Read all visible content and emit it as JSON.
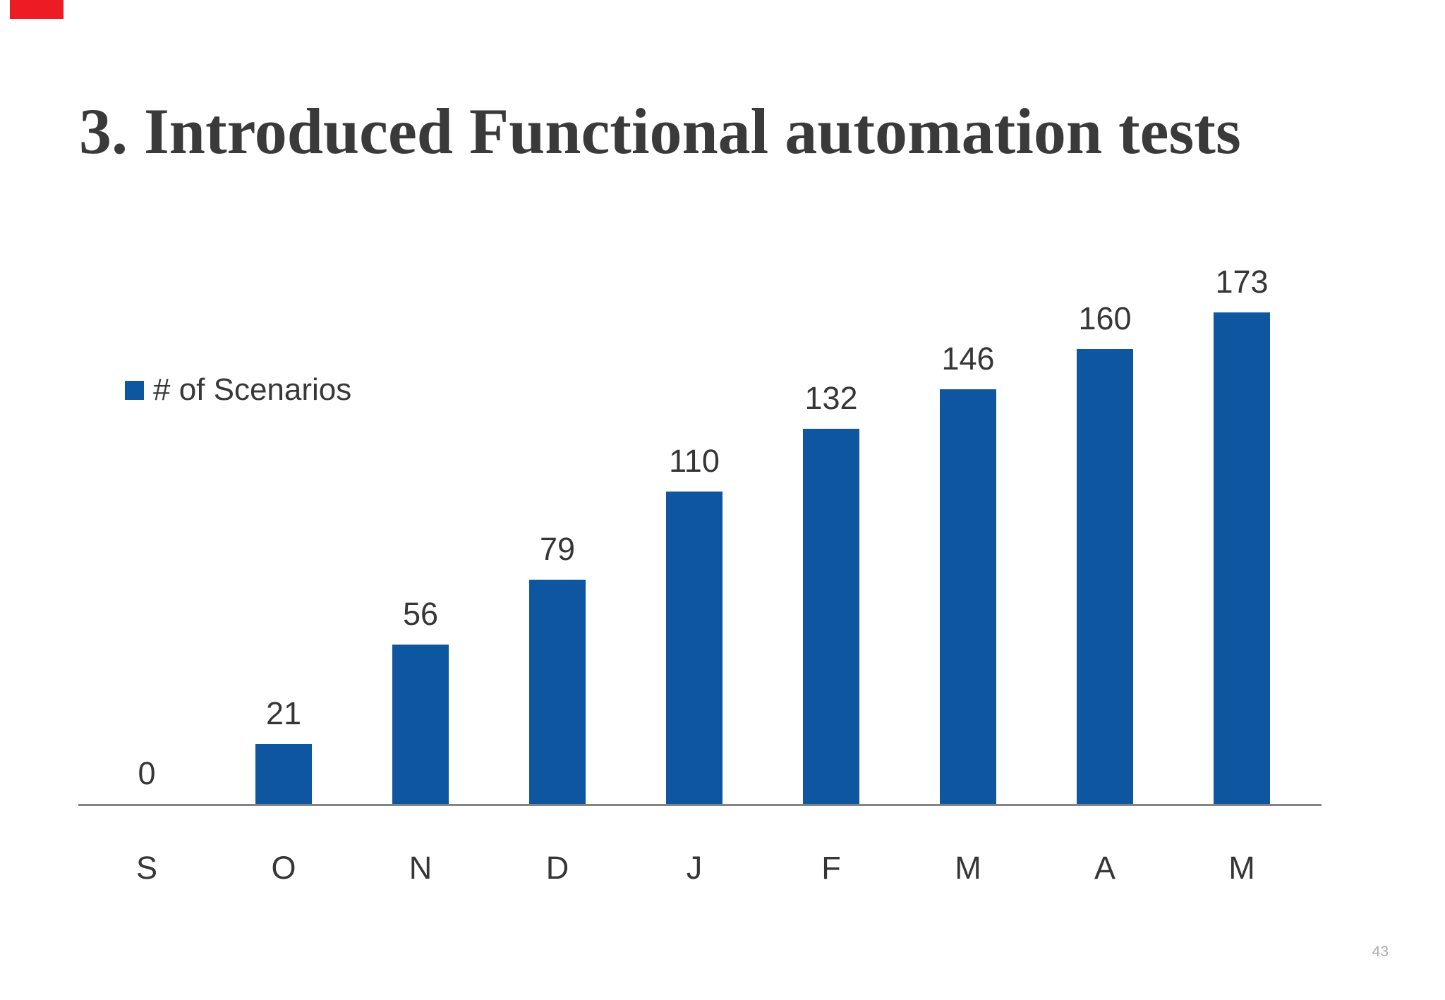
{
  "slide": {
    "title": "3. Introduced Functional automation tests",
    "page_number": "43"
  },
  "legend": {
    "label": "# of Scenarios"
  },
  "chart_data": {
    "type": "bar",
    "title": "3. Introduced Functional automation tests",
    "categories": [
      "S",
      "O",
      "N",
      "D",
      "J",
      "F",
      "M",
      "A",
      "M"
    ],
    "series": [
      {
        "name": "# of Scenarios",
        "values": [
          0,
          21,
          56,
          79,
          110,
          132,
          146,
          160,
          173
        ]
      }
    ],
    "data_labels": true,
    "gridlines": false,
    "y_axis_visible": false,
    "ylim": [
      0,
      180
    ],
    "legend_position": "left-middle",
    "bar_color": "#0e56a0",
    "axis_line_color": "#848484",
    "label_color": "#363636"
  },
  "decor": {
    "corner_accent_color": "#ed1c24"
  }
}
